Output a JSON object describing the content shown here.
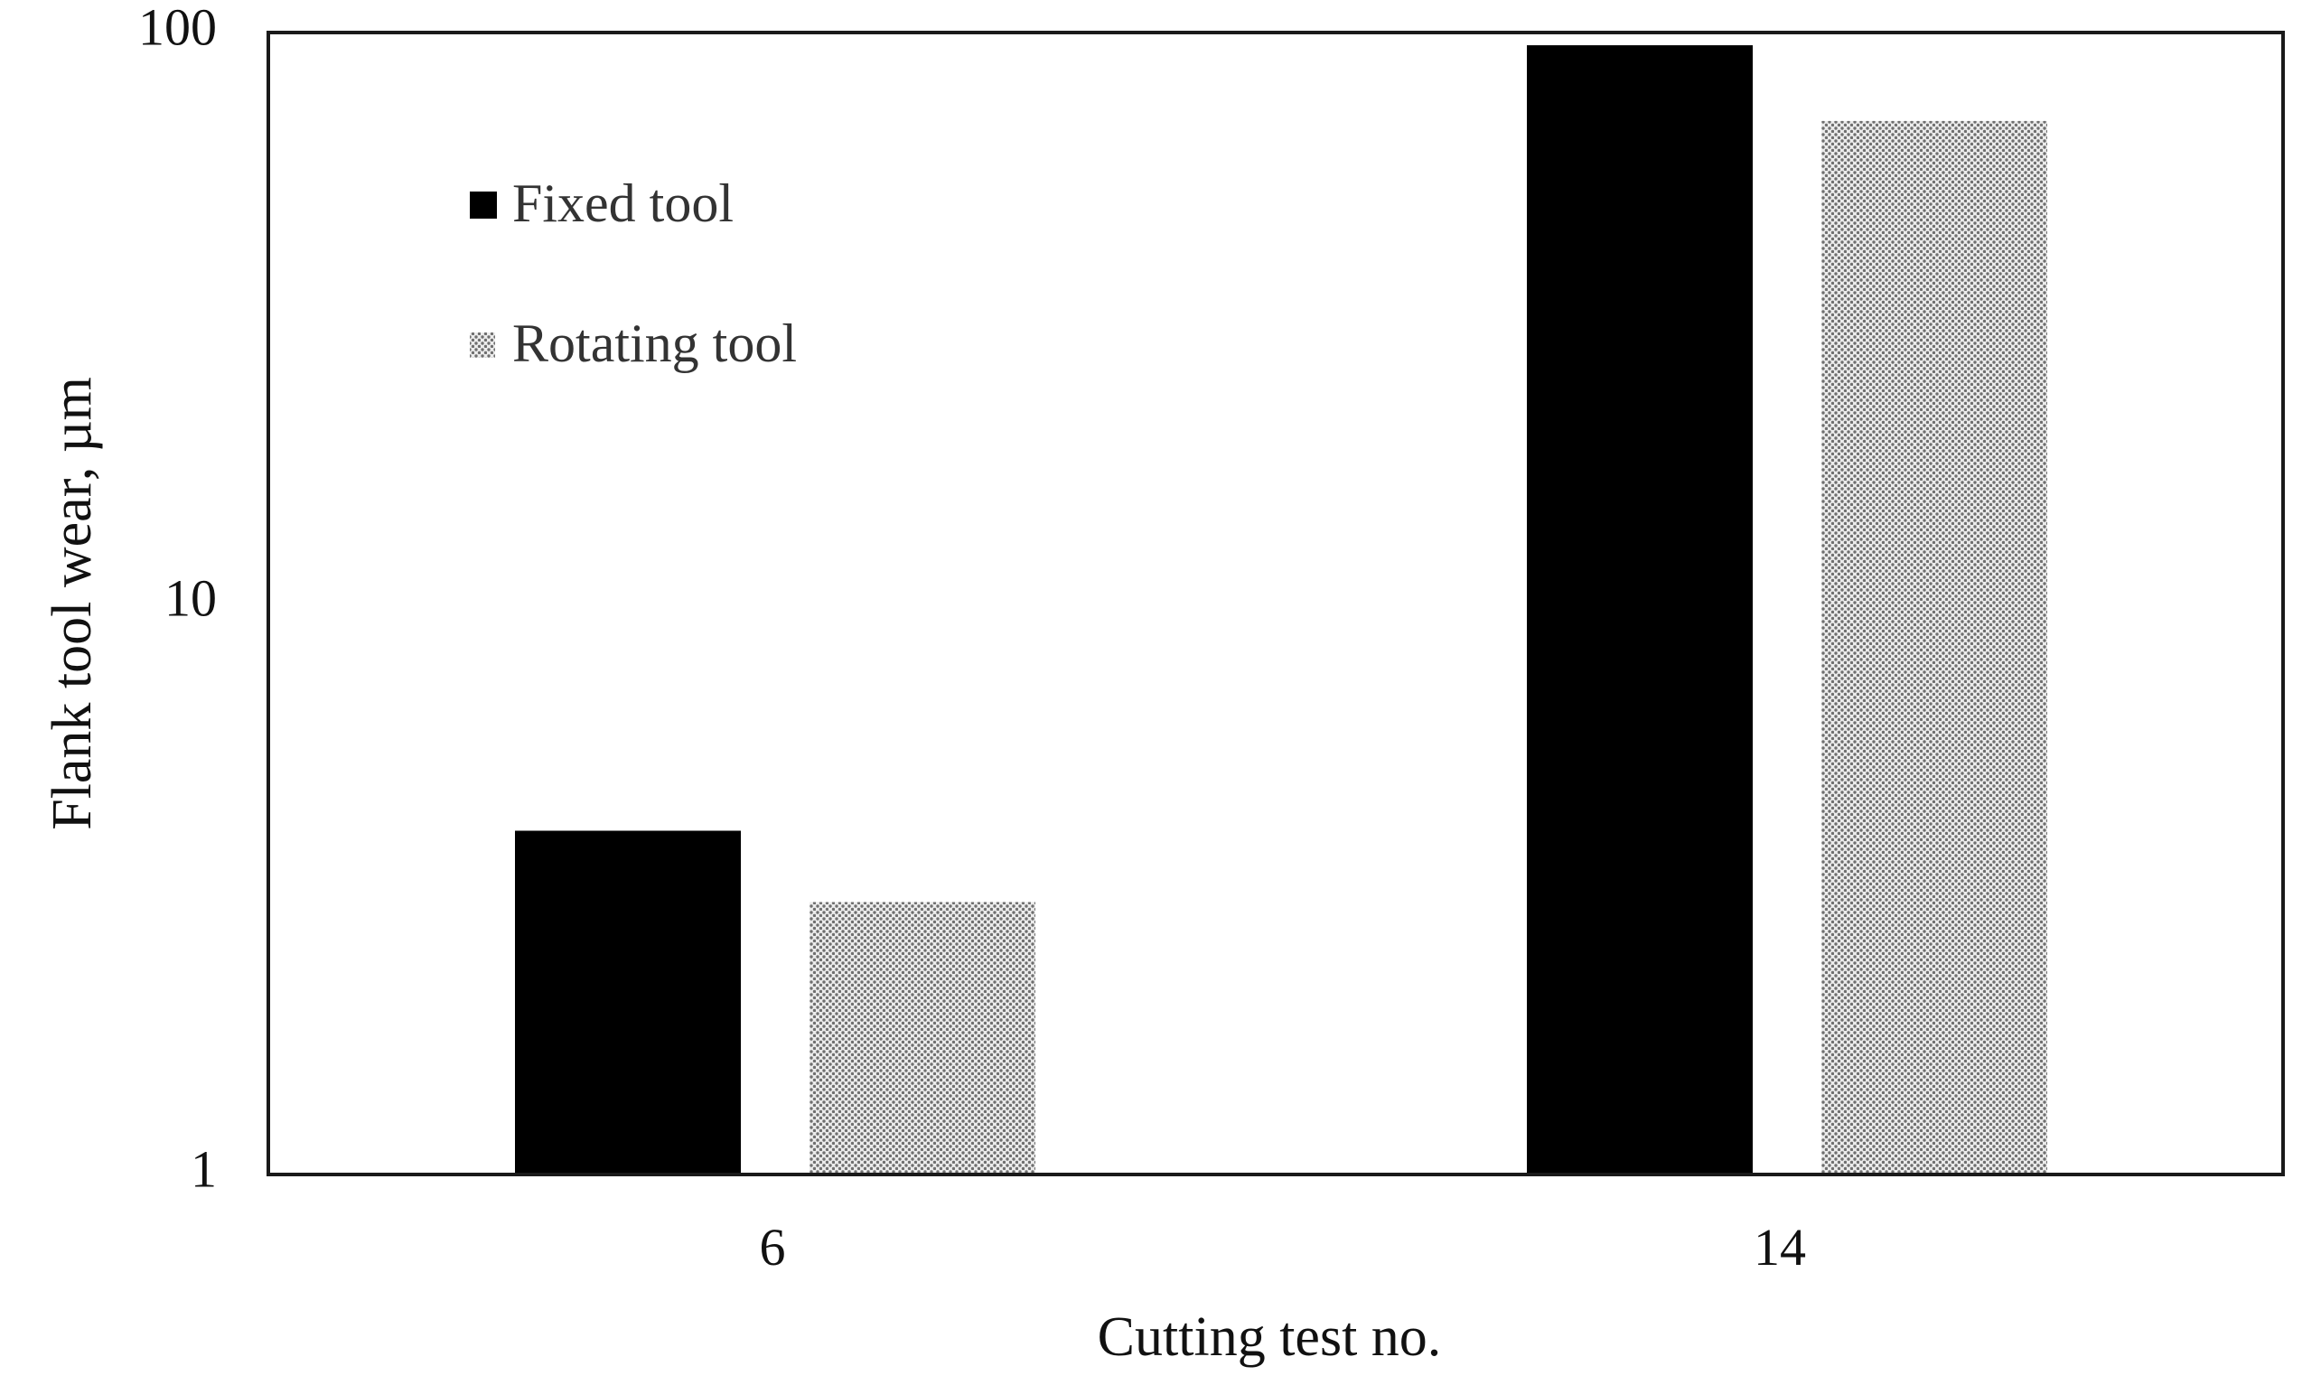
{
  "chart_data": {
    "type": "bar",
    "categories": [
      "6",
      "14"
    ],
    "series": [
      {
        "name": "Fixed tool",
        "values": [
          4,
          95
        ],
        "color": "#000000",
        "pattern": "solid"
      },
      {
        "name": "Rotating tool",
        "values": [
          3,
          70
        ],
        "color": "#9a9a9a",
        "pattern": "dotted"
      }
    ],
    "ylabel": "Flank tool wear, µm",
    "xlabel": "Cutting test no.",
    "ylim": [
      1,
      100
    ],
    "yscale": "log",
    "yticks": [
      "1",
      "10",
      "100"
    ],
    "grid": false,
    "legend_position": "top-left"
  }
}
